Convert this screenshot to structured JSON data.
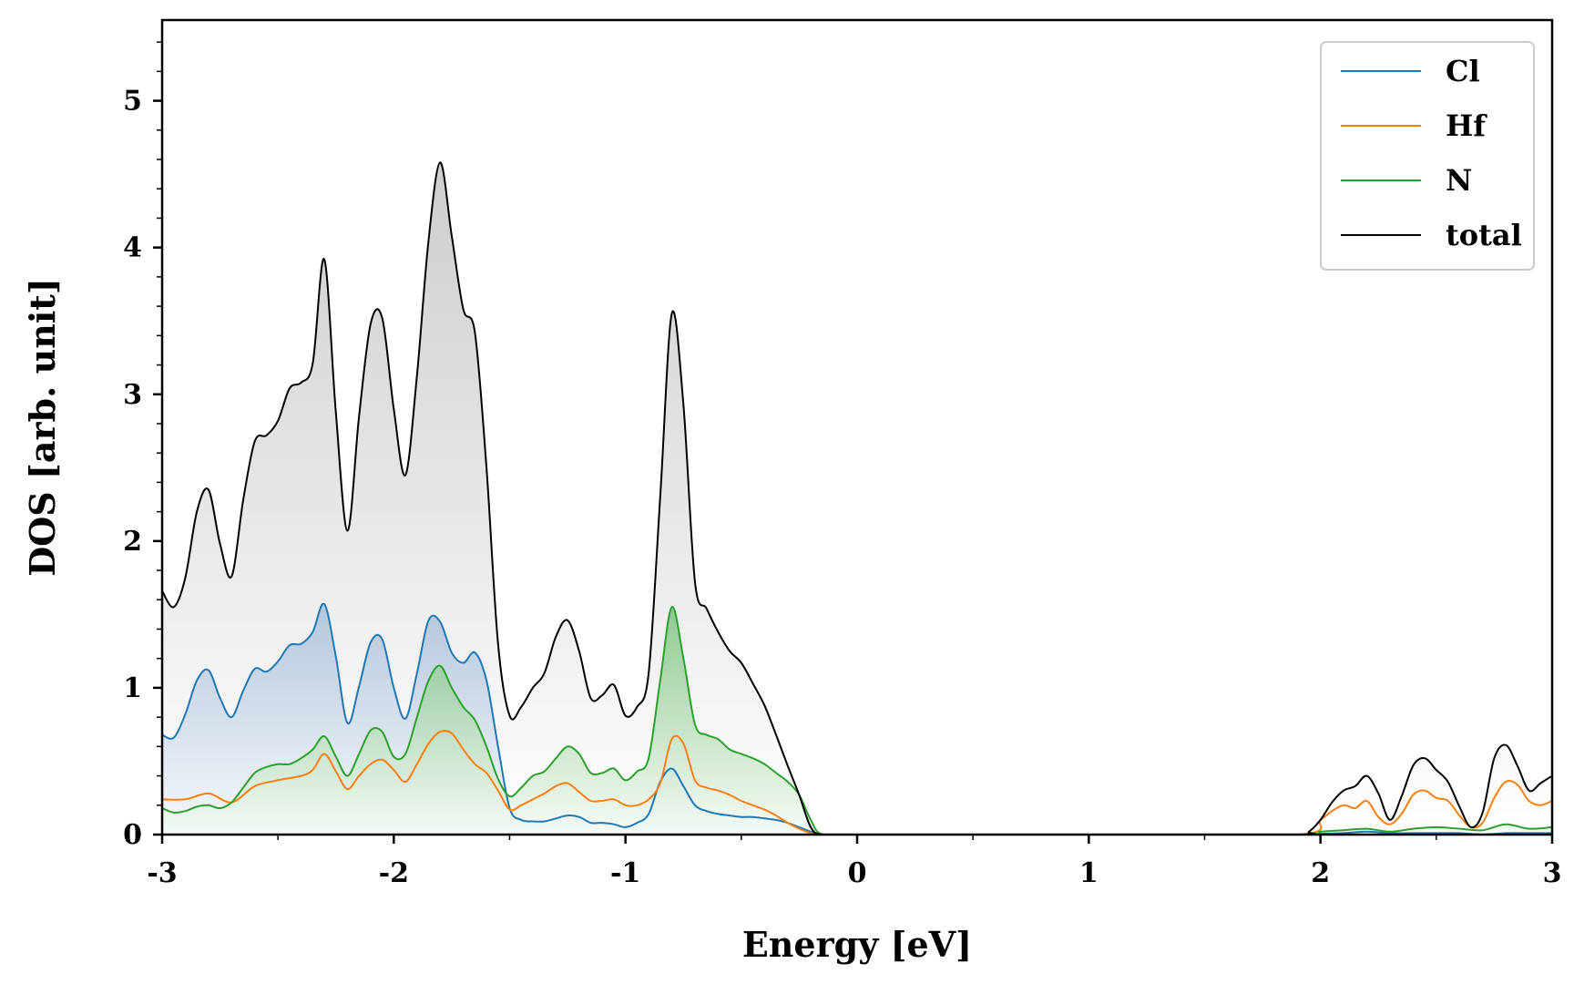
{
  "chart_data": {
    "type": "line",
    "xlabel": "Energy [eV]",
    "ylabel": "DOS [arb. unit]",
    "xlim": [
      -3,
      3
    ],
    "ylim": [
      0,
      5.55
    ],
    "x_ticks": [
      -3,
      -2,
      -1,
      0,
      1,
      2,
      3
    ],
    "x_tick_labels": [
      "-3",
      "-2",
      "-1",
      "0",
      "1",
      "2",
      "3"
    ],
    "y_ticks": [
      0,
      1,
      2,
      3,
      4,
      5
    ],
    "y_tick_labels": [
      "0",
      "1",
      "2",
      "3",
      "4",
      "5"
    ],
    "grid": false,
    "legend": "top-right",
    "series": [
      {
        "name": "Cl",
        "color": "#1f77b4",
        "filled": true,
        "x": [
          -3.0,
          -2.95,
          -2.9,
          -2.85,
          -2.8,
          -2.75,
          -2.7,
          -2.65,
          -2.6,
          -2.55,
          -2.5,
          -2.45,
          -2.4,
          -2.35,
          -2.3,
          -2.25,
          -2.2,
          -2.15,
          -2.1,
          -2.05,
          -2.0,
          -1.95,
          -1.9,
          -1.85,
          -1.8,
          -1.75,
          -1.7,
          -1.65,
          -1.6,
          -1.55,
          -1.5,
          -1.45,
          -1.4,
          -1.35,
          -1.3,
          -1.25,
          -1.2,
          -1.15,
          -1.1,
          -1.05,
          -1.0,
          -0.95,
          -0.9,
          -0.85,
          -0.8,
          -0.75,
          -0.7,
          -0.65,
          -0.6,
          -0.55,
          -0.5,
          -0.45,
          -0.4,
          -0.35,
          -0.3,
          -0.25,
          -0.2,
          -0.15,
          0.0,
          1.0,
          1.9,
          2.0,
          2.1,
          2.2,
          2.3,
          2.4,
          2.5,
          2.6,
          2.7,
          2.8,
          2.9,
          3.0
        ],
        "y": [
          0.68,
          0.66,
          0.82,
          1.05,
          1.12,
          0.93,
          0.8,
          0.98,
          1.13,
          1.11,
          1.18,
          1.29,
          1.3,
          1.38,
          1.57,
          1.21,
          0.76,
          1.01,
          1.31,
          1.33,
          1.0,
          0.79,
          1.1,
          1.46,
          1.45,
          1.24,
          1.17,
          1.24,
          1.05,
          0.6,
          0.18,
          0.1,
          0.09,
          0.09,
          0.11,
          0.13,
          0.12,
          0.08,
          0.08,
          0.07,
          0.05,
          0.08,
          0.14,
          0.36,
          0.45,
          0.33,
          0.2,
          0.16,
          0.14,
          0.13,
          0.12,
          0.12,
          0.11,
          0.1,
          0.08,
          0.05,
          0.02,
          0.0,
          0.0,
          0.0,
          0.0,
          0.005,
          0.01,
          0.02,
          0.01,
          0.01,
          0.01,
          0.01,
          0.0,
          0.01,
          0.01,
          0.01
        ]
      },
      {
        "name": "Hf",
        "color": "#ff7f0e",
        "filled": false,
        "x": [
          -3.0,
          -2.9,
          -2.8,
          -2.7,
          -2.6,
          -2.5,
          -2.4,
          -2.35,
          -2.3,
          -2.25,
          -2.2,
          -2.15,
          -2.1,
          -2.05,
          -2.0,
          -1.95,
          -1.9,
          -1.85,
          -1.8,
          -1.75,
          -1.7,
          -1.65,
          -1.6,
          -1.55,
          -1.5,
          -1.45,
          -1.4,
          -1.35,
          -1.3,
          -1.25,
          -1.2,
          -1.15,
          -1.1,
          -1.05,
          -1.0,
          -0.95,
          -0.9,
          -0.85,
          -0.8,
          -0.75,
          -0.7,
          -0.65,
          -0.6,
          -0.55,
          -0.5,
          -0.45,
          -0.4,
          -0.35,
          -0.3,
          -0.25,
          -0.2,
          -0.15,
          0.0,
          1.0,
          1.9,
          2.0,
          2.05,
          2.1,
          2.15,
          2.2,
          2.25,
          2.3,
          2.35,
          2.4,
          2.45,
          2.5,
          2.55,
          2.6,
          2.65,
          2.7,
          2.75,
          2.8,
          2.85,
          2.9,
          2.95,
          3.0
        ],
        "y": [
          0.24,
          0.24,
          0.28,
          0.22,
          0.33,
          0.37,
          0.4,
          0.44,
          0.55,
          0.43,
          0.31,
          0.4,
          0.48,
          0.51,
          0.44,
          0.36,
          0.48,
          0.62,
          0.7,
          0.69,
          0.58,
          0.48,
          0.42,
          0.3,
          0.17,
          0.2,
          0.24,
          0.28,
          0.33,
          0.35,
          0.29,
          0.23,
          0.23,
          0.24,
          0.2,
          0.2,
          0.24,
          0.35,
          0.65,
          0.62,
          0.37,
          0.32,
          0.3,
          0.27,
          0.23,
          0.2,
          0.17,
          0.13,
          0.08,
          0.04,
          0.01,
          0.0,
          0.0,
          0.0,
          0.0,
          0.1,
          0.16,
          0.2,
          0.18,
          0.23,
          0.12,
          0.07,
          0.14,
          0.27,
          0.3,
          0.25,
          0.23,
          0.13,
          0.05,
          0.08,
          0.25,
          0.36,
          0.34,
          0.23,
          0.2,
          0.23
        ]
      },
      {
        "name": "N",
        "color": "#2ca02c",
        "filled": true,
        "x": [
          -3.0,
          -2.95,
          -2.9,
          -2.85,
          -2.8,
          -2.75,
          -2.7,
          -2.65,
          -2.6,
          -2.55,
          -2.5,
          -2.45,
          -2.4,
          -2.35,
          -2.3,
          -2.25,
          -2.2,
          -2.15,
          -2.1,
          -2.05,
          -2.0,
          -1.95,
          -1.9,
          -1.85,
          -1.8,
          -1.75,
          -1.7,
          -1.65,
          -1.6,
          -1.55,
          -1.5,
          -1.45,
          -1.4,
          -1.35,
          -1.3,
          -1.25,
          -1.2,
          -1.15,
          -1.1,
          -1.05,
          -1.0,
          -0.95,
          -0.9,
          -0.85,
          -0.8,
          -0.75,
          -0.7,
          -0.65,
          -0.6,
          -0.55,
          -0.5,
          -0.45,
          -0.4,
          -0.35,
          -0.3,
          -0.25,
          -0.2,
          -0.15,
          0.0,
          1.0,
          1.9,
          2.0,
          2.1,
          2.2,
          2.3,
          2.4,
          2.5,
          2.6,
          2.7,
          2.8,
          2.9,
          3.0
        ],
        "y": [
          0.18,
          0.15,
          0.16,
          0.19,
          0.2,
          0.18,
          0.22,
          0.32,
          0.42,
          0.46,
          0.48,
          0.48,
          0.52,
          0.58,
          0.67,
          0.53,
          0.4,
          0.55,
          0.71,
          0.7,
          0.53,
          0.55,
          0.8,
          1.05,
          1.15,
          1.0,
          0.87,
          0.78,
          0.6,
          0.38,
          0.26,
          0.32,
          0.4,
          0.43,
          0.52,
          0.6,
          0.55,
          0.42,
          0.42,
          0.45,
          0.37,
          0.43,
          0.52,
          1.05,
          1.55,
          1.2,
          0.75,
          0.68,
          0.65,
          0.58,
          0.55,
          0.52,
          0.48,
          0.42,
          0.36,
          0.27,
          0.1,
          0.0,
          0.0,
          0.0,
          0.0,
          0.02,
          0.03,
          0.04,
          0.02,
          0.04,
          0.05,
          0.04,
          0.03,
          0.07,
          0.04,
          0.05
        ]
      },
      {
        "name": "total",
        "color": "#000000",
        "filled": true,
        "x": [
          -3.0,
          -2.95,
          -2.9,
          -2.85,
          -2.8,
          -2.75,
          -2.7,
          -2.65,
          -2.6,
          -2.55,
          -2.5,
          -2.45,
          -2.4,
          -2.35,
          -2.3,
          -2.25,
          -2.2,
          -2.15,
          -2.1,
          -2.05,
          -2.0,
          -1.95,
          -1.9,
          -1.85,
          -1.8,
          -1.75,
          -1.7,
          -1.65,
          -1.6,
          -1.55,
          -1.5,
          -1.45,
          -1.4,
          -1.35,
          -1.3,
          -1.25,
          -1.2,
          -1.15,
          -1.1,
          -1.05,
          -1.0,
          -0.95,
          -0.9,
          -0.85,
          -0.8,
          -0.75,
          -0.7,
          -0.65,
          -0.6,
          -0.55,
          -0.5,
          -0.45,
          -0.4,
          -0.35,
          -0.3,
          -0.25,
          -0.2,
          -0.15,
          0.0,
          1.0,
          1.9,
          1.95,
          2.0,
          2.05,
          2.1,
          2.15,
          2.2,
          2.25,
          2.3,
          2.35,
          2.4,
          2.45,
          2.5,
          2.55,
          2.6,
          2.65,
          2.7,
          2.75,
          2.8,
          2.85,
          2.9,
          2.95,
          3.0
        ],
        "y": [
          1.66,
          1.55,
          1.75,
          2.2,
          2.35,
          1.98,
          1.76,
          2.28,
          2.68,
          2.72,
          2.82,
          3.04,
          3.08,
          3.21,
          3.92,
          2.87,
          2.07,
          2.85,
          3.48,
          3.52,
          2.9,
          2.45,
          3.13,
          4.05,
          4.58,
          4.08,
          3.58,
          3.42,
          2.5,
          1.3,
          0.81,
          0.87,
          1.0,
          1.1,
          1.35,
          1.46,
          1.25,
          0.93,
          0.95,
          1.02,
          0.81,
          0.87,
          1.1,
          2.3,
          3.55,
          2.93,
          1.72,
          1.54,
          1.38,
          1.25,
          1.17,
          1.03,
          0.88,
          0.68,
          0.47,
          0.27,
          0.05,
          0.0,
          0.0,
          0.0,
          0.0,
          0.02,
          0.1,
          0.22,
          0.3,
          0.33,
          0.4,
          0.28,
          0.1,
          0.26,
          0.47,
          0.52,
          0.44,
          0.36,
          0.19,
          0.05,
          0.15,
          0.52,
          0.61,
          0.47,
          0.3,
          0.35,
          0.4
        ]
      }
    ]
  }
}
